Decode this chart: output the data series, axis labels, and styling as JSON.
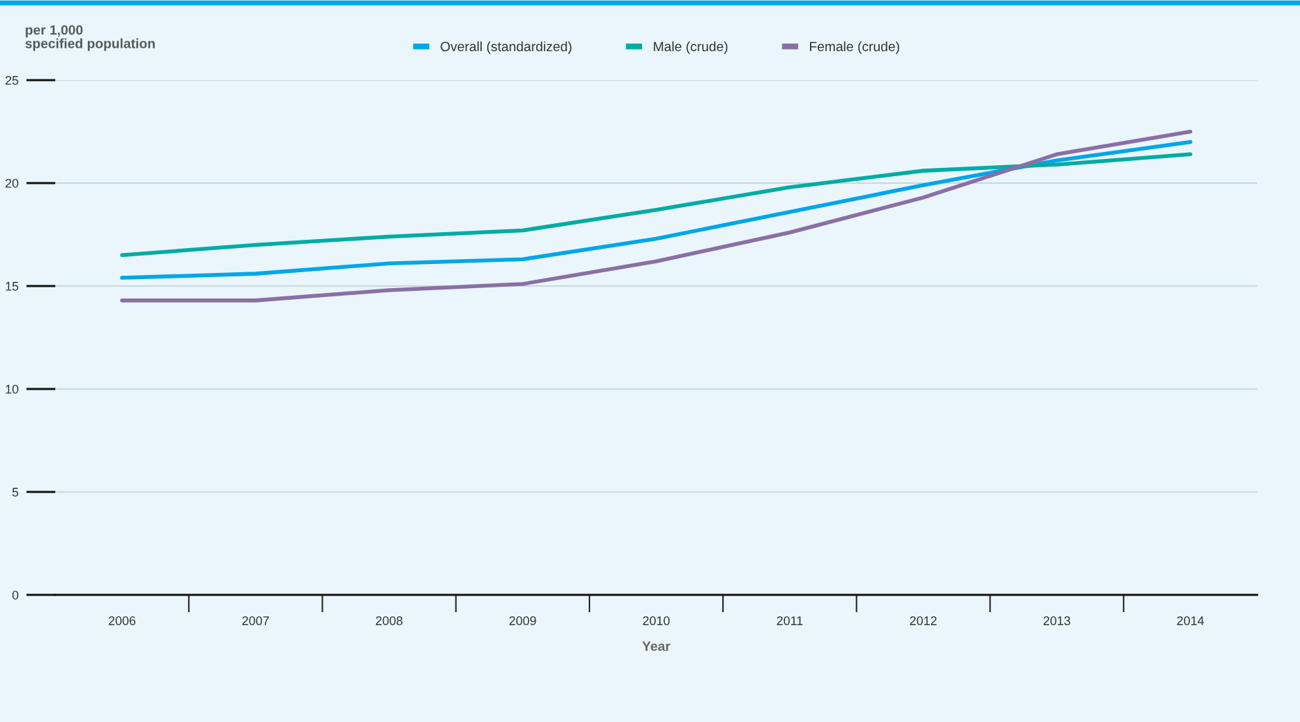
{
  "chart_data": {
    "type": "line",
    "ylabel": "per 1,000\nspecified population",
    "xlabel": "Year",
    "categories": [
      "2006",
      "2007",
      "2008",
      "2009",
      "2010",
      "2011",
      "2012",
      "2013",
      "2014"
    ],
    "series": [
      {
        "name": "Overall (standardized)",
        "color": "#00a7e8",
        "values": [
          15.4,
          15.6,
          16.1,
          16.3,
          17.3,
          18.6,
          19.9,
          21.1,
          22.0
        ]
      },
      {
        "name": "Male (crude)",
        "color": "#00aca4",
        "values": [
          16.5,
          17.0,
          17.4,
          17.7,
          18.7,
          19.8,
          20.6,
          20.9,
          21.4
        ]
      },
      {
        "name": "Female (crude)",
        "color": "#8a6fa6",
        "values": [
          14.3,
          14.3,
          14.8,
          15.1,
          16.2,
          17.6,
          19.3,
          21.4,
          22.5
        ]
      }
    ],
    "ylim": [
      0,
      25
    ],
    "yticks": [
      0,
      5,
      10,
      15,
      20,
      25
    ],
    "grid": "y",
    "legend": "top",
    "marker": "none",
    "line_style": "solid"
  }
}
